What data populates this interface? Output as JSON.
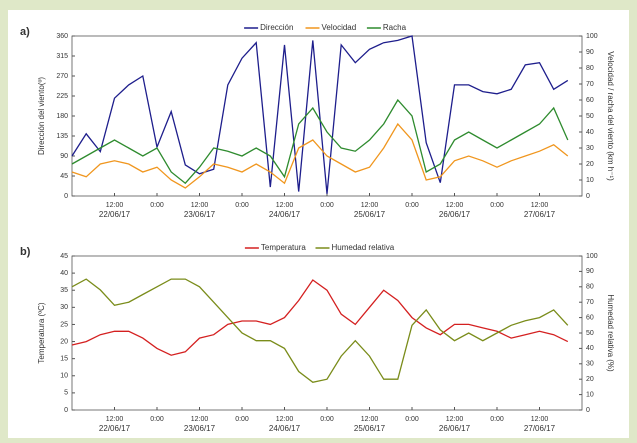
{
  "chart_data": [
    {
      "type": "line",
      "label": "a)",
      "x": [
        "22/06/17 00:00",
        "22/06/17 04:00",
        "22/06/17 08:00",
        "22/06/17 12:00",
        "22/06/17 16:00",
        "22/06/17 20:00",
        "23/06/17 00:00",
        "23/06/17 04:00",
        "23/06/17 08:00",
        "23/06/17 12:00",
        "23/06/17 16:00",
        "23/06/17 20:00",
        "24/06/17 00:00",
        "24/06/17 04:00",
        "24/06/17 08:00",
        "24/06/17 12:00",
        "24/06/17 16:00",
        "24/06/17 20:00",
        "25/06/17 00:00",
        "25/06/17 04:00",
        "25/06/17 08:00",
        "25/06/17 12:00",
        "25/06/17 16:00",
        "25/06/17 20:00",
        "26/06/17 00:00",
        "26/06/17 04:00",
        "26/06/17 08:00",
        "26/06/17 12:00",
        "26/06/17 16:00",
        "26/06/17 20:00",
        "27/06/17 00:00",
        "27/06/17 04:00",
        "27/06/17 08:00",
        "27/06/17 12:00",
        "27/06/17 16:00",
        "27/06/17 20:00"
      ],
      "xlim": [
        "22/06/17 00:00",
        "28/06/17 00:00"
      ],
      "xticks": [
        {
          "value": "22/06/17 12:00",
          "label": "12:00"
        },
        {
          "value": "23/06/17 00:00",
          "label": "0:00"
        },
        {
          "value": "23/06/17 12:00",
          "label": "12:00"
        },
        {
          "value": "24/06/17 00:00",
          "label": "0:00"
        },
        {
          "value": "24/06/17 12:00",
          "label": "12:00"
        },
        {
          "value": "25/06/17 00:00",
          "label": "0:00"
        },
        {
          "value": "25/06/17 12:00",
          "label": "12:00"
        },
        {
          "value": "26/06/17 00:00",
          "label": "0:00"
        },
        {
          "value": "26/06/17 12:00",
          "label": "12:00"
        },
        {
          "value": "27/06/17 00:00",
          "label": "0:00"
        },
        {
          "value": "27/06/17 12:00",
          "label": "12:00"
        }
      ],
      "date_labels": [
        {
          "value": "22/06/17 12:00",
          "label": "22/06/17"
        },
        {
          "value": "23/06/17 12:00",
          "label": "23/06/17"
        },
        {
          "value": "24/06/17 12:00",
          "label": "24/06/17"
        },
        {
          "value": "25/06/17 12:00",
          "label": "25/06/17"
        },
        {
          "value": "26/06/17 12:00",
          "label": "26/06/17"
        },
        {
          "value": "27/06/17 12:00",
          "label": "27/06/17"
        }
      ],
      "ylabel": "Dirección del viento(º)",
      "ylim": [
        0,
        360
      ],
      "yticks": [
        0,
        45,
        90,
        135,
        180,
        225,
        270,
        315,
        360
      ],
      "y2label": "Velocidad / racha del viento (km h⁻¹)",
      "y2lim": [
        0,
        100
      ],
      "y2ticks": [
        0,
        10,
        20,
        30,
        40,
        50,
        60,
        70,
        80,
        90,
        100
      ],
      "series": [
        {
          "name": "Dirección",
          "color": "#1e1e8c",
          "values": [
            90,
            140,
            100,
            220,
            250,
            270,
            110,
            190,
            70,
            50,
            60,
            250,
            310,
            345,
            20,
            340,
            10,
            350,
            5,
            340,
            300,
            330,
            345,
            350,
            360,
            120,
            30,
            250,
            250,
            235,
            230,
            240,
            295,
            300,
            240,
            260
          ]
        },
        {
          "name": "Velocidad",
          "color": "#f0961e",
          "axis": "y2",
          "values": [
            15,
            12,
            20,
            22,
            20,
            15,
            18,
            10,
            5,
            12,
            20,
            18,
            15,
            20,
            15,
            8,
            30,
            35,
            25,
            20,
            15,
            18,
            30,
            45,
            35,
            10,
            12,
            22,
            25,
            22,
            18,
            22,
            25,
            28,
            32,
            25
          ]
        },
        {
          "name": "Racha",
          "color": "#2e8b2e",
          "axis": "y2",
          "values": [
            20,
            25,
            30,
            35,
            30,
            25,
            30,
            15,
            8,
            18,
            30,
            28,
            25,
            30,
            25,
            12,
            45,
            55,
            40,
            30,
            28,
            35,
            45,
            60,
            50,
            15,
            20,
            35,
            40,
            35,
            30,
            35,
            40,
            45,
            55,
            35
          ]
        }
      ]
    },
    {
      "type": "line",
      "label": "b)",
      "x": [
        "22/06/17 00:00",
        "22/06/17 04:00",
        "22/06/17 08:00",
        "22/06/17 12:00",
        "22/06/17 16:00",
        "22/06/17 20:00",
        "23/06/17 00:00",
        "23/06/17 04:00",
        "23/06/17 08:00",
        "23/06/17 12:00",
        "23/06/17 16:00",
        "23/06/17 20:00",
        "24/06/17 00:00",
        "24/06/17 04:00",
        "24/06/17 08:00",
        "24/06/17 12:00",
        "24/06/17 16:00",
        "24/06/17 20:00",
        "25/06/17 00:00",
        "25/06/17 04:00",
        "25/06/17 08:00",
        "25/06/17 12:00",
        "25/06/17 16:00",
        "25/06/17 20:00",
        "26/06/17 00:00",
        "26/06/17 04:00",
        "26/06/17 08:00",
        "26/06/17 12:00",
        "26/06/17 16:00",
        "26/06/17 20:00",
        "27/06/17 00:00",
        "27/06/17 04:00",
        "27/06/17 08:00",
        "27/06/17 12:00",
        "27/06/17 16:00",
        "27/06/17 20:00"
      ],
      "xlim": [
        "22/06/17 00:00",
        "28/06/17 00:00"
      ],
      "xticks": [
        {
          "value": "22/06/17 12:00",
          "label": "12:00"
        },
        {
          "value": "23/06/17 00:00",
          "label": "0:00"
        },
        {
          "value": "23/06/17 12:00",
          "label": "12:00"
        },
        {
          "value": "24/06/17 00:00",
          "label": "0:00"
        },
        {
          "value": "24/06/17 12:00",
          "label": "12:00"
        },
        {
          "value": "25/06/17 00:00",
          "label": "0:00"
        },
        {
          "value": "25/06/17 12:00",
          "label": "12:00"
        },
        {
          "value": "26/06/17 00:00",
          "label": "0:00"
        },
        {
          "value": "26/06/17 12:00",
          "label": "12:00"
        },
        {
          "value": "27/06/17 00:00",
          "label": "0:00"
        },
        {
          "value": "27/06/17 12:00",
          "label": "12:00"
        }
      ],
      "date_labels": [
        {
          "value": "22/06/17 12:00",
          "label": "22/06/17"
        },
        {
          "value": "23/06/17 12:00",
          "label": "23/06/17"
        },
        {
          "value": "24/06/17 12:00",
          "label": "24/06/17"
        },
        {
          "value": "25/06/17 12:00",
          "label": "25/06/17"
        },
        {
          "value": "26/06/17 12:00",
          "label": "26/06/17"
        },
        {
          "value": "27/06/17 12:00",
          "label": "27/06/17"
        }
      ],
      "ylabel": "Temperatura (ºC)",
      "ylim": [
        0,
        45
      ],
      "yticks": [
        0,
        5,
        10,
        15,
        20,
        25,
        30,
        35,
        40,
        45
      ],
      "y2label": "Humedad relativa (%)",
      "y2lim": [
        0,
        100
      ],
      "y2ticks": [
        0,
        10,
        20,
        30,
        40,
        50,
        60,
        70,
        80,
        90,
        100
      ],
      "series": [
        {
          "name": "Temperatura",
          "color": "#d42020",
          "values": [
            19,
            20,
            22,
            23,
            23,
            21,
            18,
            16,
            17,
            21,
            22,
            25,
            26,
            26,
            25,
            27,
            32,
            38,
            35,
            28,
            25,
            30,
            35,
            32,
            27,
            24,
            22,
            25,
            25,
            24,
            23,
            21,
            22,
            23,
            22,
            20
          ]
        },
        {
          "name": "Humedad relativa",
          "color": "#7a8c1a",
          "axis": "y2",
          "values": [
            80,
            85,
            78,
            68,
            70,
            75,
            80,
            85,
            85,
            80,
            70,
            60,
            50,
            45,
            45,
            40,
            25,
            18,
            20,
            35,
            45,
            35,
            20,
            20,
            55,
            65,
            52,
            45,
            50,
            45,
            50,
            55,
            58,
            60,
            65,
            55
          ]
        }
      ]
    }
  ]
}
